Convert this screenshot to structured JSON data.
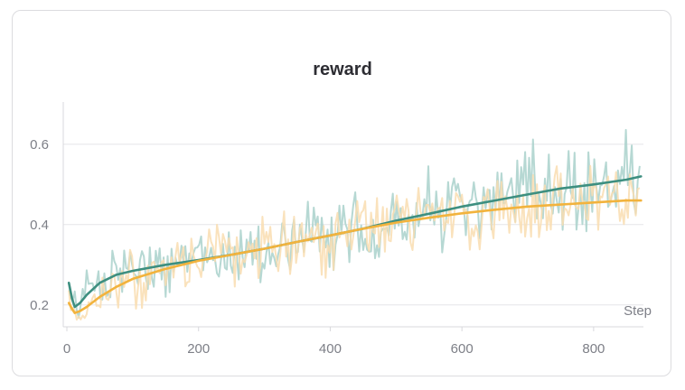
{
  "chart_data": {
    "type": "line",
    "title": "reward",
    "xlabel": "Step",
    "ylabel": "",
    "xlim": [
      0,
      875
    ],
    "ylim": [
      0.15,
      0.71
    ],
    "x_ticks": [
      0,
      200,
      400,
      600,
      800
    ],
    "y_ticks": [
      0.2,
      0.4,
      0.6
    ],
    "x_tick_labels": [
      "0",
      "200",
      "400",
      "600",
      "800"
    ],
    "y_tick_labels": [
      "0.2",
      "0.4",
      "0.6"
    ],
    "grid": "horizontal",
    "legend": "none",
    "series": [
      {
        "color": "#3d8f80",
        "raw_color": "#a9d1cb",
        "x": [
          3,
          8,
          12,
          20,
          30,
          50,
          75,
          100,
          150,
          200,
          250,
          300,
          350,
          400,
          450,
          500,
          550,
          600,
          650,
          700,
          750,
          800,
          850,
          872
        ],
        "values": [
          0.255,
          0.215,
          0.195,
          0.205,
          0.225,
          0.255,
          0.275,
          0.285,
          0.3,
          0.312,
          0.325,
          0.34,
          0.357,
          0.373,
          0.39,
          0.41,
          0.427,
          0.445,
          0.46,
          0.475,
          0.49,
          0.5,
          0.512,
          0.52
        ]
      },
      {
        "color": "#f2b33d",
        "raw_color": "#f9ddb0",
        "x": [
          3,
          8,
          12,
          20,
          30,
          50,
          75,
          100,
          150,
          200,
          250,
          300,
          350,
          400,
          450,
          500,
          550,
          600,
          650,
          700,
          750,
          800,
          850,
          872
        ],
        "values": [
          0.205,
          0.19,
          0.18,
          0.185,
          0.195,
          0.22,
          0.245,
          0.265,
          0.29,
          0.31,
          0.325,
          0.34,
          0.357,
          0.373,
          0.39,
          0.405,
          0.417,
          0.428,
          0.437,
          0.445,
          0.45,
          0.455,
          0.46,
          0.46
        ]
      }
    ]
  }
}
